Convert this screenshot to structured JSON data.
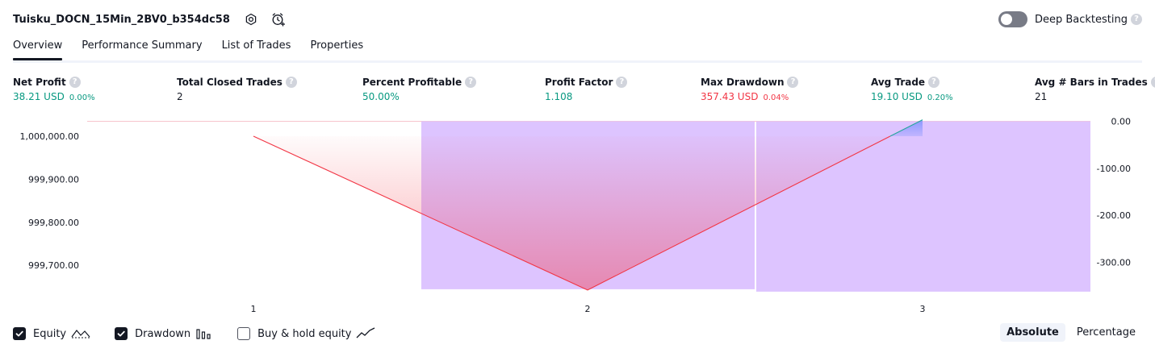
{
  "header": {
    "strategy_name": "Tuisku_DOCN_15Min_2BV0_b354dc58",
    "deep_backtesting_label": "Deep Backtesting",
    "help_glyph": "?"
  },
  "tabs": [
    {
      "label": "Overview",
      "active": true
    },
    {
      "label": "Performance Summary",
      "active": false
    },
    {
      "label": "List of Trades",
      "active": false
    },
    {
      "label": "Properties",
      "active": false
    }
  ],
  "metrics": [
    {
      "label": "Net Profit",
      "value": "38.21 USD",
      "pct": "0.00%",
      "color": "green"
    },
    {
      "label": "Total Closed Trades",
      "value": "2",
      "pct": "",
      "color": "dark"
    },
    {
      "label": "Percent Profitable",
      "value": "50.00%",
      "pct": "",
      "color": "green"
    },
    {
      "label": "Profit Factor",
      "value": "1.108",
      "pct": "",
      "color": "green"
    },
    {
      "label": "Max Drawdown",
      "value": "357.43 USD",
      "pct": "0.04%",
      "color": "red"
    },
    {
      "label": "Avg Trade",
      "value": "19.10 USD",
      "pct": "0.20%",
      "color": "green"
    },
    {
      "label": "Avg # Bars in Trades",
      "value": "21",
      "pct": "",
      "color": "dark"
    }
  ],
  "chart_data": {
    "type": "line",
    "x": [
      1,
      2,
      3
    ],
    "xlabels": [
      "1",
      "2",
      "3"
    ],
    "series": [
      {
        "values": [
          1000000.0,
          999642.57,
          1000038.21
        ],
        "color": "#f23645"
      },
      {
        "type": "bar",
        "values": [
          0.0,
          -357.43,
          -357.43
        ],
        "color": "#ddc4ff"
      }
    ],
    "left_axis": {
      "ticks": [
        "1,000,000.00",
        "999,900.00",
        "999,800.00",
        "999,700.00"
      ],
      "ylim": [
        999640,
        1000035
      ]
    },
    "right_axis": {
      "ticks": [
        "0.00",
        "-100.00",
        "-200.00",
        "-300.00"
      ],
      "ylim": [
        -360,
        0
      ]
    },
    "grid": false
  },
  "footer": {
    "equity_label": "Equity",
    "drawdown_label": "Drawdown",
    "buyhold_label": "Buy & hold equity",
    "equity_checked": true,
    "drawdown_checked": true,
    "buyhold_checked": false,
    "absolute_label": "Absolute",
    "percentage_label": "Percentage"
  },
  "colors": {
    "green": "#089981",
    "red": "#f23645",
    "drawdown_fill": "#ddc4ff",
    "text": "#131722"
  },
  "icons": {
    "settings": "settings-gear-icon",
    "alert": "add-alert-icon",
    "help": "help-icon",
    "checkbox": "checkmark-icon",
    "equity": "equity-line-icon",
    "drawdown": "drawdown-bars-icon",
    "buyhold": "buyhold-line-icon"
  }
}
